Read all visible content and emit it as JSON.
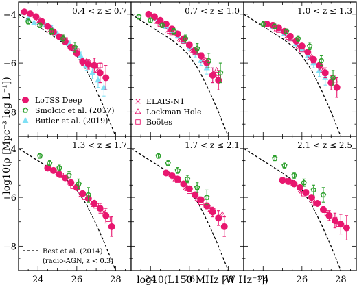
{
  "figure": {
    "ylabel": "log10(ρ [Mpc⁻³ log L⁻¹])",
    "xlabel": "log10(L150 MHz [W Hz⁻¹])",
    "xlim": [
      23.0,
      28.8
    ],
    "ylim": [
      -9.0,
      -3.5
    ],
    "xticks": [
      24,
      26,
      28
    ],
    "yticks": [
      -4,
      -6,
      -8
    ],
    "colors": {
      "lotss": "#e8176f",
      "smolcic": "#2ca02c",
      "butler": "#7fe0f5",
      "best": "#000000",
      "fields": "#e8176f"
    }
  },
  "legend": {
    "lotss": "LoTSS Deep",
    "smolcic": "Smolcic et al. (2017)",
    "butler": "Butler et al. (2019)",
    "elais": "ELAIS-N1",
    "lockman": "Lockman Hole",
    "bootes": "Boötes",
    "best_line1": "Best et al. (2014)",
    "best_line2": "(radio-AGN, z < 0.3)"
  },
  "chart_data": [
    {
      "type": "scatter",
      "title": "0.4 < z ≤ 0.7",
      "series": [
        {
          "name": "LoTSS Deep",
          "x": [
            23.3,
            23.6,
            23.9,
            24.2,
            24.5,
            24.8,
            25.1,
            25.4,
            25.7,
            26.0,
            26.3,
            26.6,
            26.9,
            27.2,
            27.5
          ],
          "y": [
            -3.9,
            -3.98,
            -4.1,
            -4.3,
            -4.5,
            -4.72,
            -4.92,
            -5.12,
            -5.35,
            -5.6,
            -5.95,
            -6.05,
            -6.1,
            -6.4,
            -6.6
          ],
          "yerr": [
            0.05,
            0.05,
            0.05,
            0.05,
            0.06,
            0.06,
            0.07,
            0.08,
            0.1,
            0.12,
            0.15,
            0.2,
            0.3,
            0.4,
            0.5
          ]
        },
        {
          "name": "Smolcic et al. (2017)",
          "x": [
            22.9,
            23.5,
            24.1,
            24.7,
            25.3,
            25.9
          ],
          "y": [
            -4.15,
            -4.3,
            -4.45,
            -4.7,
            -5.0,
            -5.35
          ],
          "yerr": [
            0.1,
            0.1,
            0.1,
            0.12,
            0.15,
            0.2
          ]
        },
        {
          "name": "Butler et al. (2019)",
          "x": [
            23.5,
            23.8,
            24.1,
            24.4,
            24.7,
            25.0,
            25.3,
            25.6,
            25.9,
            26.2,
            26.5,
            26.8,
            27.1,
            27.4
          ],
          "y": [
            -4.2,
            -4.35,
            -4.3,
            -4.45,
            -4.55,
            -4.8,
            -5.0,
            -5.2,
            -5.45,
            -5.7,
            -6.1,
            -6.4,
            -6.7,
            -7.0
          ],
          "yerr": [
            0.08,
            0.08,
            0.08,
            0.08,
            0.08,
            0.08,
            0.08,
            0.1,
            0.12,
            0.15,
            0.2,
            0.25,
            0.3,
            0.35
          ]
        },
        {
          "name": "ELAIS-N1",
          "x": [
            24.0,
            24.6,
            25.2,
            25.8,
            26.4,
            27.0
          ],
          "y": [
            -4.3,
            -4.65,
            -4.95,
            -5.35,
            -5.9,
            -6.2
          ]
        },
        {
          "name": "Lockman Hole",
          "x": [
            24.1,
            24.7,
            25.3,
            25.9,
            26.5,
            27.1
          ],
          "y": [
            -4.25,
            -4.6,
            -4.95,
            -5.4,
            -5.95,
            -6.3
          ]
        },
        {
          "name": "Boötes",
          "x": [
            24.2,
            24.8,
            25.4,
            26.0,
            26.6,
            27.2
          ],
          "y": [
            -4.35,
            -4.7,
            -5.05,
            -5.5,
            -6.0,
            -6.1
          ]
        },
        {
          "name": "",
          "x": [
            23.0,
            24.0,
            25.0,
            25.5,
            26.0,
            26.5,
            27.0,
            27.5,
            28.0
          ],
          "y": [
            -4.0,
            -4.5,
            -5.0,
            -5.3,
            -5.7,
            -6.3,
            -7.1,
            -8.0,
            -9.0
          ]
        }
      ]
    },
    {
      "type": "scatter",
      "title": "0.7 < z ≤ 1.0",
      "series": [
        {
          "name": "LoTSS Deep",
          "x": [
            23.9,
            24.2,
            24.5,
            24.8,
            25.1,
            25.4,
            25.7,
            26.0,
            26.3,
            26.6,
            26.9,
            27.2,
            27.5
          ],
          "y": [
            -4.0,
            -4.1,
            -4.25,
            -4.4,
            -4.6,
            -4.8,
            -5.0,
            -5.25,
            -5.5,
            -5.7,
            -6.0,
            -6.5,
            -6.7
          ],
          "yerr": [
            0.05,
            0.05,
            0.05,
            0.05,
            0.06,
            0.06,
            0.07,
            0.08,
            0.1,
            0.12,
            0.2,
            0.3,
            0.4
          ]
        },
        {
          "name": "Smolcic et al. (2017)",
          "x": [
            23.4,
            24.0,
            24.6,
            25.2,
            25.8,
            26.4,
            27.0,
            27.6
          ],
          "y": [
            -4.1,
            -4.25,
            -4.45,
            -4.7,
            -5.0,
            -5.4,
            -5.9,
            -6.4
          ],
          "yerr": [
            0.1,
            0.1,
            0.1,
            0.12,
            0.15,
            0.2,
            0.3,
            0.4
          ]
        },
        {
          "name": "Butler et al. (2019)",
          "x": [
            24.2,
            24.5,
            24.8,
            25.1,
            25.4,
            25.7,
            26.0,
            26.3,
            26.6,
            26.9,
            27.2
          ],
          "y": [
            -4.15,
            -4.3,
            -4.5,
            -4.7,
            -4.9,
            -5.1,
            -5.35,
            -5.6,
            -5.9,
            -6.2,
            -6.5
          ],
          "yerr": [
            0.08,
            0.08,
            0.08,
            0.08,
            0.08,
            0.1,
            0.12,
            0.15,
            0.2,
            0.25,
            0.3
          ]
        },
        {
          "name": "ELAIS-N1",
          "x": [
            24.3,
            24.9,
            25.5,
            26.1,
            26.7,
            27.3
          ],
          "y": [
            -4.3,
            -4.65,
            -5.0,
            -5.45,
            -5.9,
            -6.4
          ]
        },
        {
          "name": "Lockman Hole",
          "x": [
            24.4,
            25.0,
            25.6,
            26.2,
            26.8,
            27.4
          ],
          "y": [
            -4.3,
            -4.7,
            -5.05,
            -5.5,
            -5.85,
            -6.3
          ]
        },
        {
          "name": "Boötes",
          "x": [
            24.5,
            25.1,
            25.7,
            26.3,
            26.9,
            27.5
          ],
          "y": [
            -4.4,
            -4.75,
            -5.1,
            -5.55,
            -6.0,
            -6.6
          ]
        },
        {
          "name": "",
          "x": [
            23.0,
            24.0,
            25.0,
            25.5,
            26.0,
            26.5,
            27.0,
            27.5,
            28.0
          ],
          "y": [
            -4.0,
            -4.5,
            -5.0,
            -5.3,
            -5.7,
            -6.3,
            -7.1,
            -8.0,
            -9.0
          ]
        }
      ]
    },
    {
      "type": "scatter",
      "title": "1.0 < z ≤ 1.3",
      "series": [
        {
          "name": "LoTSS Deep",
          "x": [
            24.2,
            24.5,
            24.8,
            25.1,
            25.4,
            25.7,
            26.0,
            26.3,
            26.6,
            26.9,
            27.2,
            27.5,
            27.8
          ],
          "y": [
            -4.4,
            -4.45,
            -4.55,
            -4.7,
            -4.9,
            -5.1,
            -5.3,
            -5.55,
            -5.85,
            -6.1,
            -6.4,
            -6.8,
            -7.0
          ],
          "yerr": [
            0.05,
            0.05,
            0.05,
            0.05,
            0.06,
            0.06,
            0.07,
            0.08,
            0.1,
            0.12,
            0.2,
            0.3,
            0.4
          ]
        },
        {
          "name": "Smolcic et al. (2017)",
          "x": [
            24.0,
            24.6,
            25.2,
            25.8,
            26.4,
            27.0,
            27.6
          ],
          "y": [
            -4.4,
            -4.5,
            -4.7,
            -5.0,
            -5.3,
            -5.9,
            -6.6
          ],
          "yerr": [
            0.1,
            0.1,
            0.1,
            0.12,
            0.15,
            0.2,
            0.3
          ]
        },
        {
          "name": "Butler et al. (2019)",
          "x": [
            24.5,
            24.8,
            25.1,
            25.4,
            25.7,
            26.0,
            26.3,
            26.6,
            26.9,
            27.2
          ],
          "y": [
            -4.5,
            -4.6,
            -4.8,
            -5.0,
            -5.2,
            -5.4,
            -5.7,
            -6.0,
            -6.3,
            -6.6
          ],
          "yerr": [
            0.08,
            0.08,
            0.08,
            0.08,
            0.1,
            0.12,
            0.15,
            0.2,
            0.25,
            0.3
          ]
        },
        {
          "name": "ELAIS-N1",
          "x": [
            24.6,
            25.2,
            25.8,
            26.4,
            27.0,
            27.6
          ],
          "y": [
            -4.55,
            -4.9,
            -5.3,
            -5.8,
            -6.2,
            -6.6
          ]
        },
        {
          "name": "Lockman Hole",
          "x": [
            24.7,
            25.3,
            25.9,
            26.5,
            27.1,
            27.7
          ],
          "y": [
            -4.6,
            -4.95,
            -5.35,
            -5.75,
            -6.3,
            -6.7
          ]
        },
        {
          "name": "Boötes",
          "x": [
            24.8,
            25.4,
            26.0,
            26.6,
            27.2
          ],
          "y": [
            -4.65,
            -5.0,
            -5.45,
            -5.9,
            -6.4
          ]
        },
        {
          "name": "",
          "x": [
            23.0,
            24.0,
            25.0,
            25.5,
            26.0,
            26.5,
            27.0,
            27.5,
            28.0
          ],
          "y": [
            -4.0,
            -4.5,
            -5.0,
            -5.3,
            -5.7,
            -6.3,
            -7.1,
            -8.0,
            -9.0
          ]
        }
      ]
    },
    {
      "type": "scatter",
      "title": "1.3 < z ≤ 1.7",
      "series": [
        {
          "name": "LoTSS Deep",
          "x": [
            24.5,
            24.8,
            25.1,
            25.4,
            25.7,
            26.0,
            26.3,
            26.6,
            26.9,
            27.2,
            27.5,
            27.8
          ],
          "y": [
            -4.8,
            -4.9,
            -5.05,
            -5.2,
            -5.4,
            -5.6,
            -5.85,
            -6.05,
            -6.25,
            -6.45,
            -6.75,
            -7.2
          ],
          "yerr": [
            0.05,
            0.05,
            0.05,
            0.06,
            0.06,
            0.07,
            0.08,
            0.1,
            0.12,
            0.2,
            0.3,
            0.4
          ]
        },
        {
          "name": "Smolcic et al. (2017)",
          "x": [
            24.1,
            24.6,
            25.1,
            25.6,
            26.1,
            26.6
          ],
          "y": [
            -4.3,
            -4.6,
            -4.8,
            -5.1,
            -5.45,
            -5.9
          ],
          "yerr": [
            0.1,
            0.1,
            0.12,
            0.15,
            0.2,
            0.3
          ]
        },
        {
          "name": "ELAIS-N1",
          "x": [
            25.0,
            25.6,
            26.2,
            26.8,
            27.4
          ],
          "y": [
            -5.0,
            -5.4,
            -5.9,
            -6.2,
            -6.6
          ]
        },
        {
          "name": "Lockman Hole",
          "x": [
            25.1,
            25.7,
            26.3,
            26.9,
            27.5
          ],
          "y": [
            -5.05,
            -5.45,
            -5.85,
            -6.3,
            -6.7
          ]
        },
        {
          "name": "Boötes",
          "x": [
            25.2,
            25.8,
            26.4,
            27.0,
            27.6
          ],
          "y": [
            -5.1,
            -5.55,
            -6.0,
            -6.35,
            -6.9
          ]
        },
        {
          "name": "Best et al. (2014) (radio-AGN, z < 0.3)",
          "x": [
            23.0,
            24.0,
            25.0,
            25.5,
            26.0,
            26.5,
            27.0,
            27.5,
            28.0
          ],
          "y": [
            -4.0,
            -4.5,
            -5.0,
            -5.3,
            -5.7,
            -6.3,
            -7.1,
            -8.0,
            -9.0
          ]
        }
      ]
    },
    {
      "type": "scatter",
      "title": "1.7 < z ≤ 2.1",
      "series": [
        {
          "name": "LoTSS Deep",
          "x": [
            24.8,
            25.1,
            25.4,
            25.7,
            26.0,
            26.3,
            26.6,
            26.9,
            27.2,
            27.5,
            27.8
          ],
          "y": [
            -5.0,
            -5.1,
            -5.25,
            -5.45,
            -5.65,
            -5.9,
            -6.1,
            -6.35,
            -6.6,
            -6.85,
            -7.2
          ],
          "yerr": [
            0.05,
            0.05,
            0.06,
            0.06,
            0.07,
            0.08,
            0.1,
            0.12,
            0.2,
            0.3,
            0.4
          ]
        },
        {
          "name": "Smolcic et al. (2017)",
          "x": [
            24.4,
            24.9,
            25.4,
            25.9,
            26.4,
            26.9
          ],
          "y": [
            -4.3,
            -4.6,
            -4.9,
            -5.25,
            -5.6,
            -6.0
          ],
          "yerr": [
            0.1,
            0.1,
            0.12,
            0.15,
            0.2,
            0.3
          ]
        },
        {
          "name": "ELAIS-N1",
          "x": [
            25.2,
            25.8,
            26.4,
            27.0,
            27.6
          ],
          "y": [
            -5.2,
            -5.6,
            -6.05,
            -6.4,
            -6.8
          ]
        },
        {
          "name": "Lockman Hole",
          "x": [
            25.3,
            25.9,
            26.5,
            27.1,
            27.7
          ],
          "y": [
            -5.25,
            -5.65,
            -6.1,
            -6.5,
            -6.7
          ]
        },
        {
          "name": "Boötes",
          "x": [
            25.4,
            26.0,
            26.6,
            27.2
          ],
          "y": [
            -5.3,
            -5.75,
            -6.2,
            -6.55
          ]
        },
        {
          "name": "",
          "x": [
            23.0,
            24.0,
            25.0,
            25.5,
            26.0,
            26.5,
            27.0,
            27.5,
            28.0
          ],
          "y": [
            -4.0,
            -4.5,
            -5.0,
            -5.3,
            -5.7,
            -6.3,
            -7.1,
            -8.0,
            -9.0
          ]
        }
      ]
    },
    {
      "type": "scatter",
      "title": "2.1 < z ≤ 2.5",
      "series": [
        {
          "name": "LoTSS Deep",
          "x": [
            25.0,
            25.3,
            25.6,
            25.9,
            26.2,
            26.5,
            26.8,
            27.1,
            27.4,
            27.7,
            28.0,
            28.3
          ],
          "y": [
            -5.3,
            -5.35,
            -5.45,
            -5.6,
            -5.8,
            -6.0,
            -6.25,
            -6.5,
            -6.75,
            -6.95,
            -7.1,
            -7.25
          ],
          "yerr": [
            0.05,
            0.05,
            0.06,
            0.06,
            0.07,
            0.08,
            0.1,
            0.12,
            0.2,
            0.3,
            0.4,
            0.5
          ]
        },
        {
          "name": "Smolcic et al. (2017)",
          "x": [
            24.6,
            25.1,
            25.6,
            26.1,
            26.6,
            27.1
          ],
          "y": [
            -4.4,
            -4.7,
            -5.1,
            -5.4,
            -5.7,
            -5.9
          ],
          "yerr": [
            0.1,
            0.1,
            0.12,
            0.15,
            0.2,
            0.3
          ]
        },
        {
          "name": "ELAIS-N1",
          "x": [
            25.3,
            25.9,
            26.5,
            27.1,
            27.7
          ],
          "y": [
            -5.3,
            -5.7,
            -6.1,
            -6.5,
            -6.9
          ]
        },
        {
          "name": "Lockman Hole",
          "x": [
            25.4,
            26.0,
            26.6,
            27.2,
            27.8
          ],
          "y": [
            -5.35,
            -5.75,
            -6.15,
            -6.55,
            -7.0
          ]
        },
        {
          "name": "Boötes",
          "x": [
            25.5,
            26.1,
            26.7,
            27.3,
            27.9
          ],
          "y": [
            -5.4,
            -5.85,
            -6.25,
            -6.65,
            -7.1
          ]
        },
        {
          "name": "",
          "x": [
            23.0,
            24.0,
            25.0,
            25.5,
            26.0,
            26.5,
            27.0,
            27.5,
            28.0
          ],
          "y": [
            -4.0,
            -4.5,
            -5.0,
            -5.3,
            -5.7,
            -6.3,
            -7.1,
            -8.0,
            -9.0
          ]
        }
      ]
    }
  ]
}
